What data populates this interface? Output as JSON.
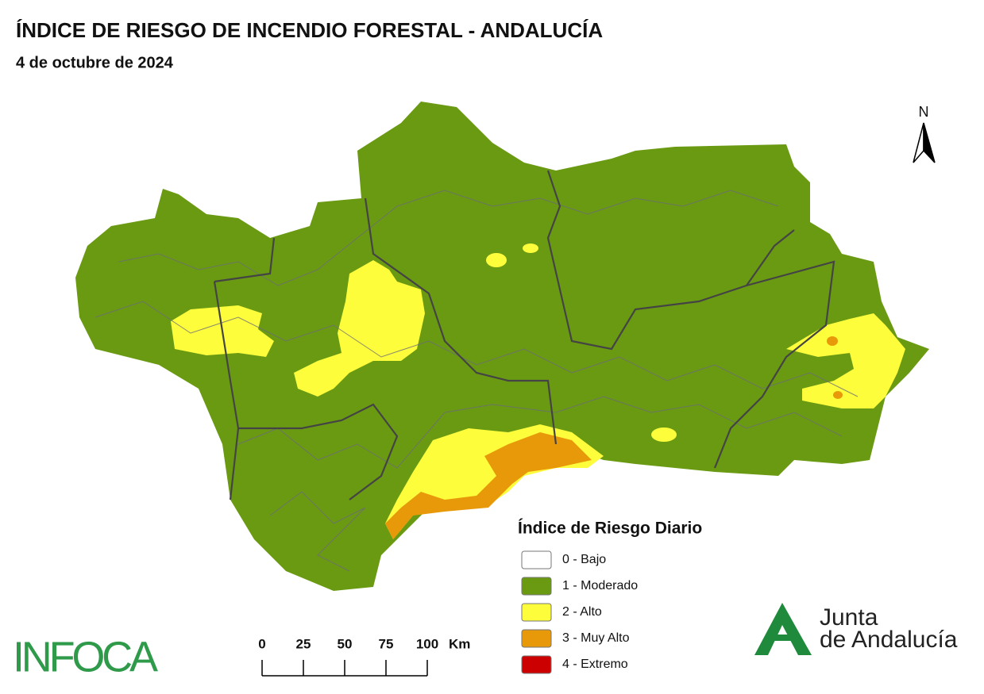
{
  "header": {
    "title": "ÍNDICE DE RIESGO DE INCENDIO FORESTAL - ANDALUCÍA",
    "subtitle": "4 de octubre de 2024"
  },
  "north": "N",
  "legend": {
    "title": "Índice de Riesgo Diario",
    "items": [
      {
        "label": "0 - Bajo",
        "color": "#ffffff"
      },
      {
        "label": "1 - Moderado",
        "color": "#6a9a12"
      },
      {
        "label": "2 - Alto",
        "color": "#fdfd3c"
      },
      {
        "label": "3 - Muy Alto",
        "color": "#e8990a"
      },
      {
        "label": "4 - Extremo",
        "color": "#cc0000"
      }
    ]
  },
  "scale": {
    "ticks": [
      0,
      25,
      50,
      75,
      100
    ],
    "unit": "Km"
  },
  "logos": {
    "infoca": "INFOCA",
    "junta_1": "Junta",
    "junta_2": "de Andalucía"
  }
}
